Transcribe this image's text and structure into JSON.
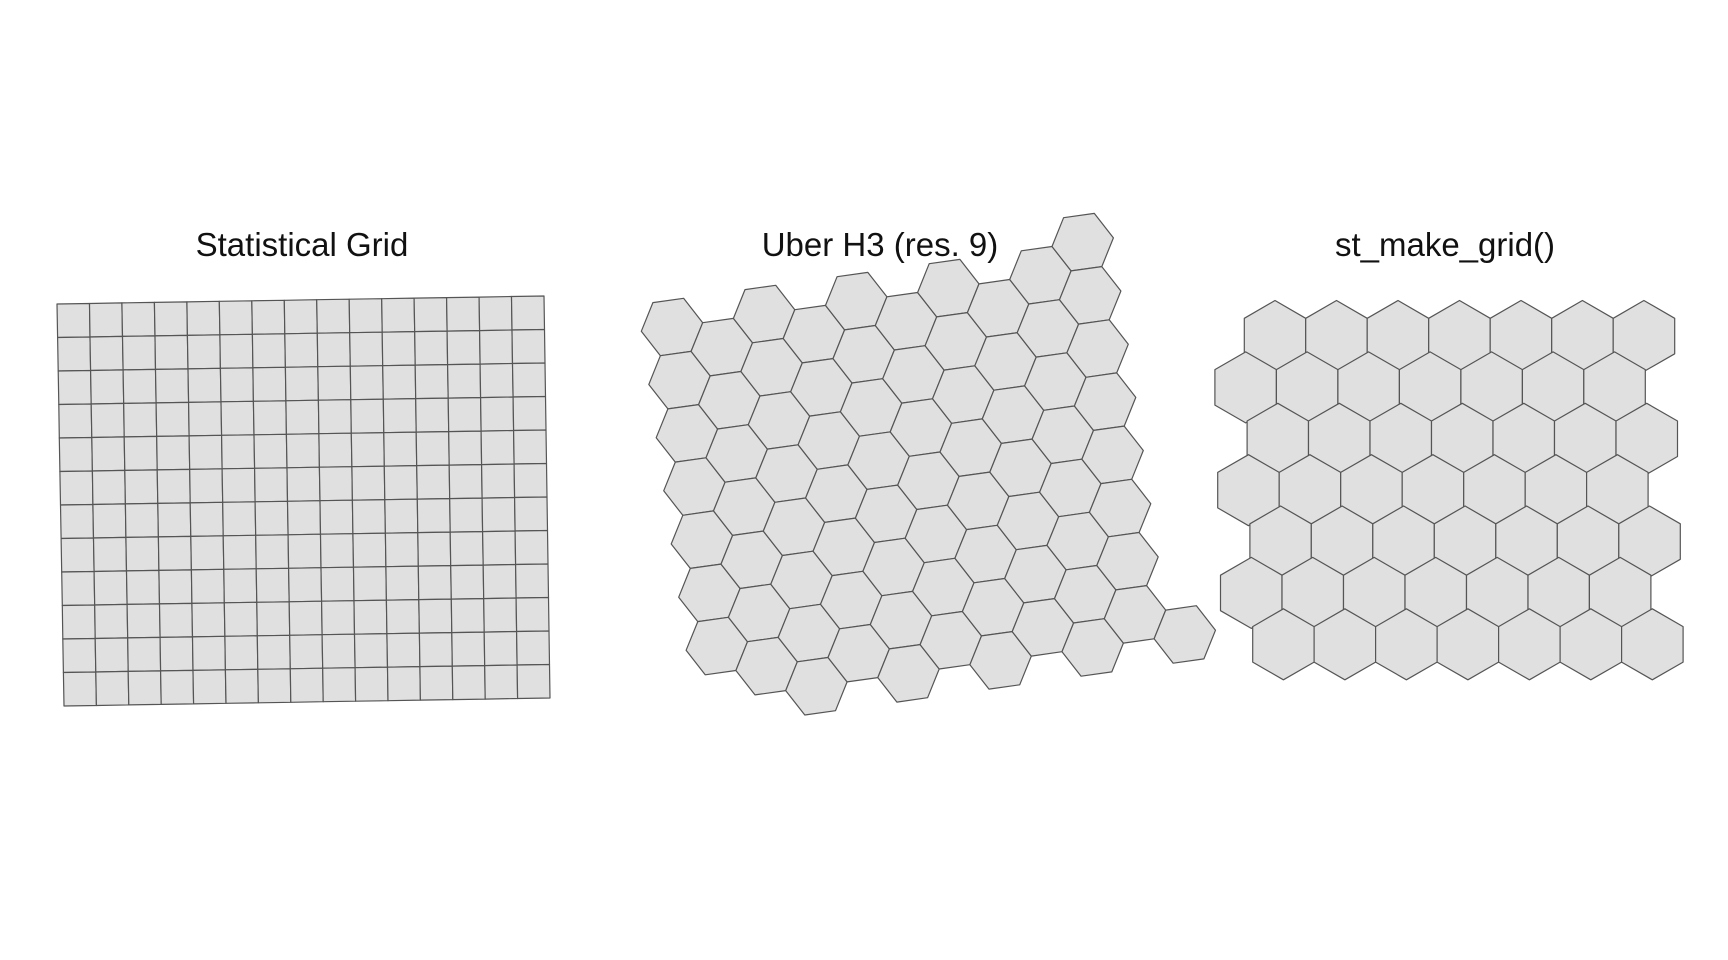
{
  "panels": [
    {
      "title": "Statistical Grid",
      "grid_type": "square",
      "columns": 15,
      "rows": 12
    },
    {
      "title": "Uber H3 (res. 9)",
      "grid_type": "hexagon"
    },
    {
      "title": "st_make_grid()",
      "grid_type": "hexagon",
      "columns": 7,
      "rows": 7
    }
  ],
  "colors": {
    "cell_fill": "#e0e0e0",
    "cell_stroke": "#555555",
    "background": "#ffffff",
    "title_text": "#111111"
  }
}
